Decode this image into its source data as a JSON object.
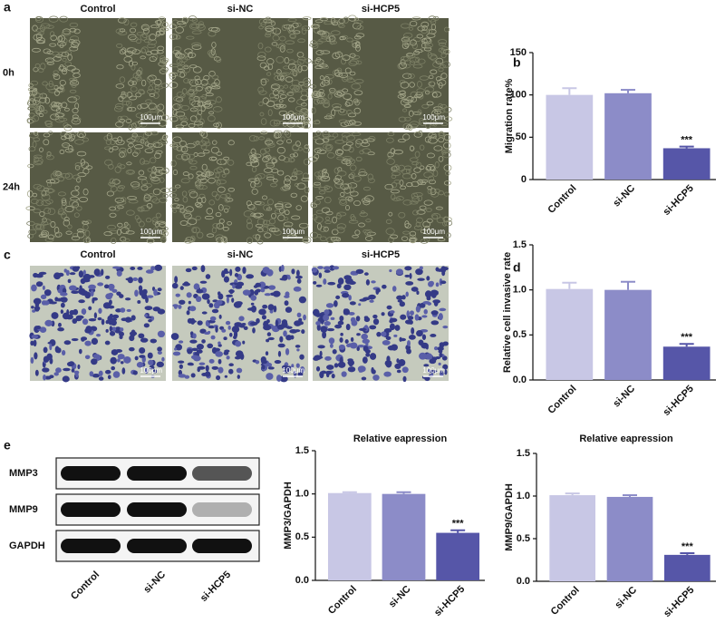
{
  "panel_labels": [
    "a",
    "b",
    "c",
    "d",
    "e"
  ],
  "wound_healing": {
    "columns": [
      "Control",
      "si-NC",
      "si-HCP5"
    ],
    "rows": [
      "0h",
      "24h"
    ],
    "scale_bar": "100μm"
  },
  "invasion": {
    "columns": [
      "Control",
      "si-NC",
      "si-HCP5"
    ],
    "scale_bar": "100μm"
  },
  "western_blot": {
    "rows": [
      "MMP3",
      "MMP9",
      "GAPDH"
    ],
    "lanes": [
      "Control",
      "si-NC",
      "si-HCP5"
    ]
  },
  "chart_data": [
    {
      "type": "bar",
      "ylabel": "Migration rate%",
      "categories": [
        "Control",
        "si-NC",
        "si-HCP5"
      ],
      "values": [
        100,
        102,
        37
      ],
      "errors": [
        8,
        4,
        2
      ],
      "annotations": [
        null,
        null,
        "***"
      ],
      "colors": [
        "#c8c7e5",
        "#8c8cc8",
        "#5656a8"
      ],
      "ylim": [
        0,
        150
      ],
      "yticks": [
        0,
        50,
        100,
        150
      ]
    },
    {
      "type": "bar",
      "ylabel": "Relative cell invasive rate",
      "categories": [
        "Control",
        "si-NC",
        "si-HCP5"
      ],
      "values": [
        1.01,
        1.0,
        0.37
      ],
      "errors": [
        0.07,
        0.09,
        0.03
      ],
      "annotations": [
        null,
        null,
        "***"
      ],
      "colors": [
        "#c8c7e5",
        "#8c8cc8",
        "#5656a8"
      ],
      "ylim": [
        0,
        1.5
      ],
      "yticks": [
        {
          "value": 0,
          "label": "0.0"
        },
        0.5,
        {
          "value": 1,
          "label": "1.0"
        },
        1.5
      ]
    },
    {
      "type": "bar",
      "title": "Relative eapression",
      "ylabel": "MMP3/GAPDH",
      "categories": [
        "Control",
        "si-NC",
        "si-HCP5"
      ],
      "values": [
        1.01,
        1.0,
        0.55
      ],
      "errors": [
        0.01,
        0.02,
        0.03
      ],
      "annotations": [
        null,
        null,
        "***"
      ],
      "colors": [
        "#c8c7e5",
        "#8c8cc8",
        "#5656a8"
      ],
      "ylim": [
        0,
        1.5
      ],
      "yticks": [
        {
          "value": 0,
          "label": "0.0"
        },
        0.5,
        {
          "value": 1,
          "label": "1.0"
        },
        1.5
      ]
    },
    {
      "type": "bar",
      "title": "Relative eapression",
      "ylabel": "MMP9/GAPDH",
      "categories": [
        "Control",
        "si-NC",
        "si-HCP5"
      ],
      "values": [
        1.01,
        0.99,
        0.31
      ],
      "errors": [
        0.02,
        0.02,
        0.02
      ],
      "annotations": [
        null,
        null,
        "***"
      ],
      "colors": [
        "#c8c7e5",
        "#8c8cc8",
        "#5656a8"
      ],
      "ylim": [
        0,
        1.5
      ],
      "yticks": [
        {
          "value": 0,
          "label": "0.0"
        },
        0.5,
        {
          "value": 1,
          "label": "1.0"
        },
        1.5
      ]
    }
  ]
}
